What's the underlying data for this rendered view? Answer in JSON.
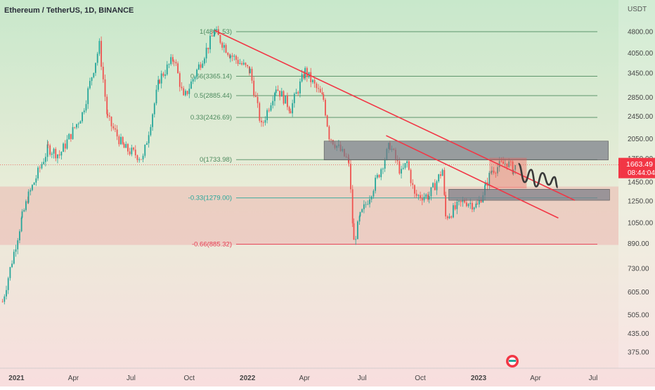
{
  "header": {
    "symbol_title": "Ethereum / TetherUS, 1D, BINANCE"
  },
  "price_axis": {
    "currency": "USDT",
    "ticks": [
      4800,
      4050,
      3450,
      2850,
      2450,
      2050,
      1750,
      1450,
      1250,
      1050,
      890,
      730,
      605,
      505,
      435,
      375
    ],
    "current_price": "1663.49",
    "countdown": "08:44:04"
  },
  "time_axis": {
    "ticks": [
      "2021",
      "Apr",
      "Jul",
      "Oct",
      "2022",
      "Apr",
      "Jul",
      "Oct",
      "2023",
      "Apr",
      "Jul"
    ]
  },
  "fib_levels": [
    {
      "label": "1(4801.53)",
      "price": 4801.53,
      "color": "#4d8a5e"
    },
    {
      "label": "0.66(3365.14)",
      "price": 3365.14,
      "color": "#4d8a5e"
    },
    {
      "label": "0.5(2885.44)",
      "price": 2885.44,
      "color": "#4d8a5e"
    },
    {
      "label": "0.33(2426.69)",
      "price": 2426.69,
      "color": "#4d8a5e"
    },
    {
      "label": "0(1733.98)",
      "price": 1733.98,
      "color": "#4d8a5e"
    },
    {
      "label": "-0.33(1279.00)",
      "price": 1279.0,
      "color": "#26a69a"
    },
    {
      "label": "-0.66(885.32)",
      "price": 885.32,
      "color": "#e53950"
    }
  ],
  "colors": {
    "bull": "#26a69a",
    "bear": "#ef5350",
    "trendline": "#f23645",
    "label_bg": "#f23645",
    "zone": "#787b86",
    "wave": "#3a3a3a"
  },
  "chart_data": {
    "type": "candlestick",
    "title": "Ethereum / TetherUS, 1D, BINANCE",
    "y_scale": "log",
    "ylim": [
      330,
      5400
    ],
    "xlim": [
      "2020-12-06",
      "2023-08-10"
    ],
    "series": [
      {
        "values": [
          [
            "2020-12-10",
            560
          ],
          [
            "2021-01-10",
            1100
          ],
          [
            "2021-01-20",
            1300
          ],
          [
            "2021-02-20",
            1900
          ],
          [
            "2021-03-10",
            1800
          ],
          [
            "2021-04-15",
            2500
          ],
          [
            "2021-05-12",
            4300
          ],
          [
            "2021-05-25",
            2400
          ],
          [
            "2021-06-20",
            1900
          ],
          [
            "2021-07-20",
            1750
          ],
          [
            "2021-08-15",
            3300
          ],
          [
            "2021-09-07",
            3900
          ],
          [
            "2021-09-22",
            2800
          ],
          [
            "2021-11-10",
            4800
          ],
          [
            "2021-12-05",
            4000
          ],
          [
            "2022-01-05",
            3500
          ],
          [
            "2022-01-23",
            2250
          ],
          [
            "2022-02-15",
            3100
          ],
          [
            "2022-03-10",
            2600
          ],
          [
            "2022-04-02",
            3500
          ],
          [
            "2022-05-01",
            2800
          ],
          [
            "2022-05-10",
            2100
          ],
          [
            "2022-06-10",
            1700
          ],
          [
            "2022-06-18",
            900
          ],
          [
            "2022-06-28",
            1100
          ],
          [
            "2022-07-25",
            1500
          ],
          [
            "2022-08-14",
            1950
          ],
          [
            "2022-09-01",
            1550
          ],
          [
            "2022-09-10",
            1700
          ],
          [
            "2022-09-22",
            1300
          ],
          [
            "2022-10-15",
            1300
          ],
          [
            "2022-11-05",
            1600
          ],
          [
            "2022-11-10",
            1100
          ],
          [
            "2022-12-10",
            1250
          ],
          [
            "2022-12-30",
            1200
          ],
          [
            "2023-01-12",
            1400
          ],
          [
            "2023-01-22",
            1600
          ],
          [
            "2023-02-15",
            1700
          ],
          [
            "2023-02-25",
            1600
          ],
          [
            "2023-03-03",
            1663
          ]
        ]
      }
    ],
    "projection_wave": [
      [
        "2023-03-05",
        1680
      ],
      [
        "2023-03-15",
        1450
      ],
      [
        "2023-03-25",
        1600
      ],
      [
        "2023-04-02",
        1400
      ],
      [
        "2023-04-12",
        1560
      ],
      [
        "2023-04-22",
        1420
      ],
      [
        "2023-05-01",
        1510
      ],
      [
        "2023-05-06",
        1390
      ]
    ],
    "trendlines": [
      {
        "from": [
          "2021-11-10",
          4850
        ],
        "to": [
          "2023-06-02",
          1255
        ]
      },
      {
        "from": [
          "2022-08-08",
          2100
        ],
        "to": [
          "2023-05-07",
          1090
        ]
      }
    ],
    "zones": [
      {
        "color": "zone",
        "from": [
          "2022-05-02",
          2010
        ],
        "to": [
          "2023-07-25",
          1730
        ]
      },
      {
        "color": "zone",
        "from": [
          "2022-11-15",
          1370
        ],
        "to": [
          "2023-07-27",
          1255
        ]
      },
      {
        "color": "bear",
        "from": [
          "2023-01-18",
          1760
        ],
        "to": [
          "2023-03-18",
          1380
        ]
      },
      {
        "color": "bear_fill",
        "from": [
          "2020-12-06",
          1400
        ],
        "to": [
          "2023-08-10",
          880
        ]
      }
    ]
  }
}
